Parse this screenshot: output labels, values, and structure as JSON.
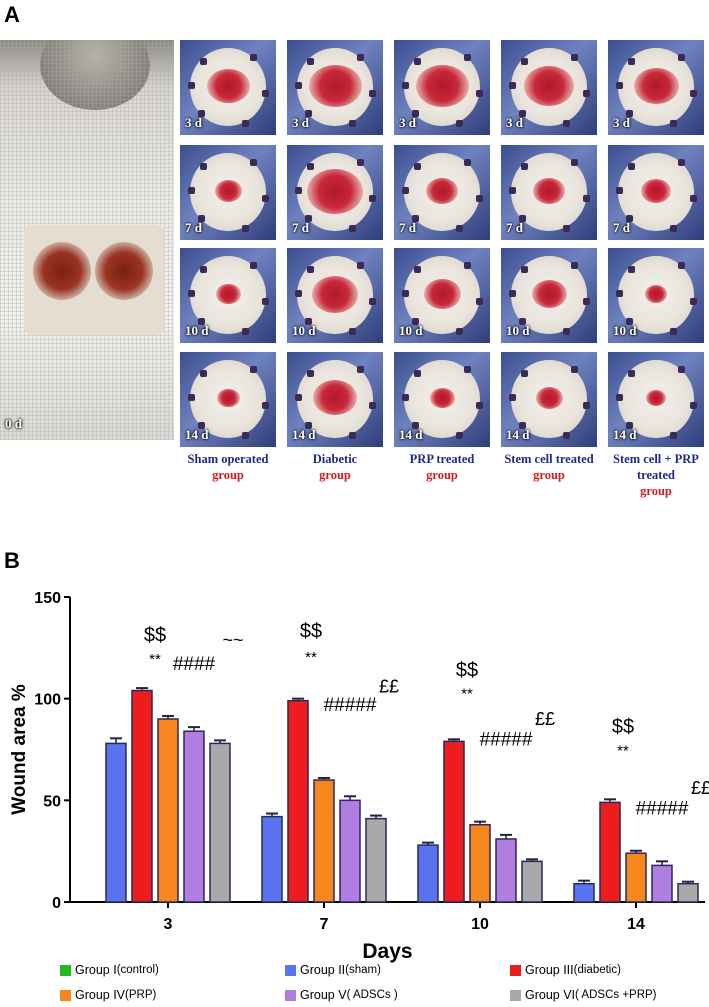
{
  "panel_a_label": "A",
  "panel_b_label": "B",
  "day0_label": "0 d",
  "day_labels": [
    "3 d",
    "7 d",
    "10 d",
    "14 d"
  ],
  "groups": [
    {
      "blue": "Sham operated",
      "red": "group"
    },
    {
      "blue": "Diabetic",
      "red": "group"
    },
    {
      "blue": "PRP treated",
      "red": "group"
    },
    {
      "blue": "Stem cell treated",
      "red": "group"
    },
    {
      "blue": "Stem cell + PRP treated",
      "red": "group"
    }
  ],
  "wound_scale": [
    [
      0.55,
      0.75,
      0.75,
      0.7,
      0.6
    ],
    [
      0.25,
      0.8,
      0.35,
      0.35,
      0.3
    ],
    [
      0.22,
      0.62,
      0.45,
      0.4,
      0.15
    ],
    [
      0.18,
      0.58,
      0.22,
      0.25,
      0.12
    ]
  ],
  "colors": {
    "group1": "#22bb22",
    "group2": "#5a74f0",
    "group3": "#ee1c1c",
    "group4": "#f7861c",
    "group5": "#b27de0",
    "group6": "#a9a9a9",
    "error": "#222244"
  },
  "chart_data": {
    "type": "bar",
    "xlabel": "Days",
    "ylabel": "Wound area %",
    "ylim": [
      0,
      150
    ],
    "yticks": [
      0,
      50,
      100,
      150
    ],
    "categories": [
      "3",
      "7",
      "10",
      "14"
    ],
    "series": [
      {
        "name": "Group II(sham)",
        "color": "#5a74f0",
        "values": [
          78,
          42,
          28,
          9
        ],
        "errors": [
          2.5,
          1.5,
          1.2,
          1.5
        ]
      },
      {
        "name": "Group III(diabetic)",
        "color": "#ee1c1c",
        "values": [
          104,
          99,
          79,
          49
        ],
        "errors": [
          1.2,
          1.0,
          1.0,
          1.5
        ]
      },
      {
        "name": "Group IV(PRP)",
        "color": "#f7861c",
        "values": [
          90,
          60,
          38,
          24
        ],
        "errors": [
          1.5,
          1.0,
          1.5,
          1.2
        ]
      },
      {
        "name": "Group V( ADSCs )",
        "color": "#b27de0",
        "values": [
          84,
          50,
          31,
          18
        ],
        "errors": [
          2.0,
          2.0,
          2.0,
          2.0
        ]
      },
      {
        "name": "Group VI( ADSCs +PRP)",
        "color": "#a9a9a9",
        "values": [
          78,
          41,
          20,
          9
        ],
        "errors": [
          1.5,
          1.5,
          1.0,
          1.0
        ]
      }
    ],
    "annotations": [
      {
        "category": "3",
        "text": "$$",
        "y": 128
      },
      {
        "category": "3",
        "text": "**",
        "y": 117
      },
      {
        "category": "3",
        "text": "####",
        "y": 114
      },
      {
        "category": "3",
        "text": "~~",
        "y": 126
      },
      {
        "category": "7",
        "text": "$$",
        "y": 130
      },
      {
        "category": "7",
        "text": "**",
        "y": 118
      },
      {
        "category": "7",
        "text": "££",
        "y": 103
      },
      {
        "category": "7",
        "text": "#####",
        "y": 94
      },
      {
        "category": "10",
        "text": "$$",
        "y": 111
      },
      {
        "category": "10",
        "text": "**",
        "y": 100
      },
      {
        "category": "10",
        "text": "££",
        "y": 87
      },
      {
        "category": "10",
        "text": "#####",
        "y": 77
      },
      {
        "category": "14",
        "text": "$$",
        "y": 83
      },
      {
        "category": "14",
        "text": "**",
        "y": 72
      },
      {
        "category": "14",
        "text": "££",
        "y": 53
      },
      {
        "category": "14",
        "text": "#####",
        "y": 43
      }
    ]
  },
  "legend": [
    {
      "main": "Group I",
      "sub": "(control)",
      "color": "#22bb22"
    },
    {
      "main": "Group II",
      "sub": "(sham)",
      "color": "#5a74f0"
    },
    {
      "main": "Group III",
      "sub": "(diabetic)",
      "color": "#ee1c1c"
    },
    {
      "main": "Group IV",
      "sub": "(PRP)",
      "color": "#f7861c"
    },
    {
      "main": "Group V",
      "sub": "( ADSCs )",
      "color": "#b27de0"
    },
    {
      "main": "Group VI",
      "sub": "( ADSCs +PRP)",
      "color": "#a9a9a9"
    }
  ]
}
